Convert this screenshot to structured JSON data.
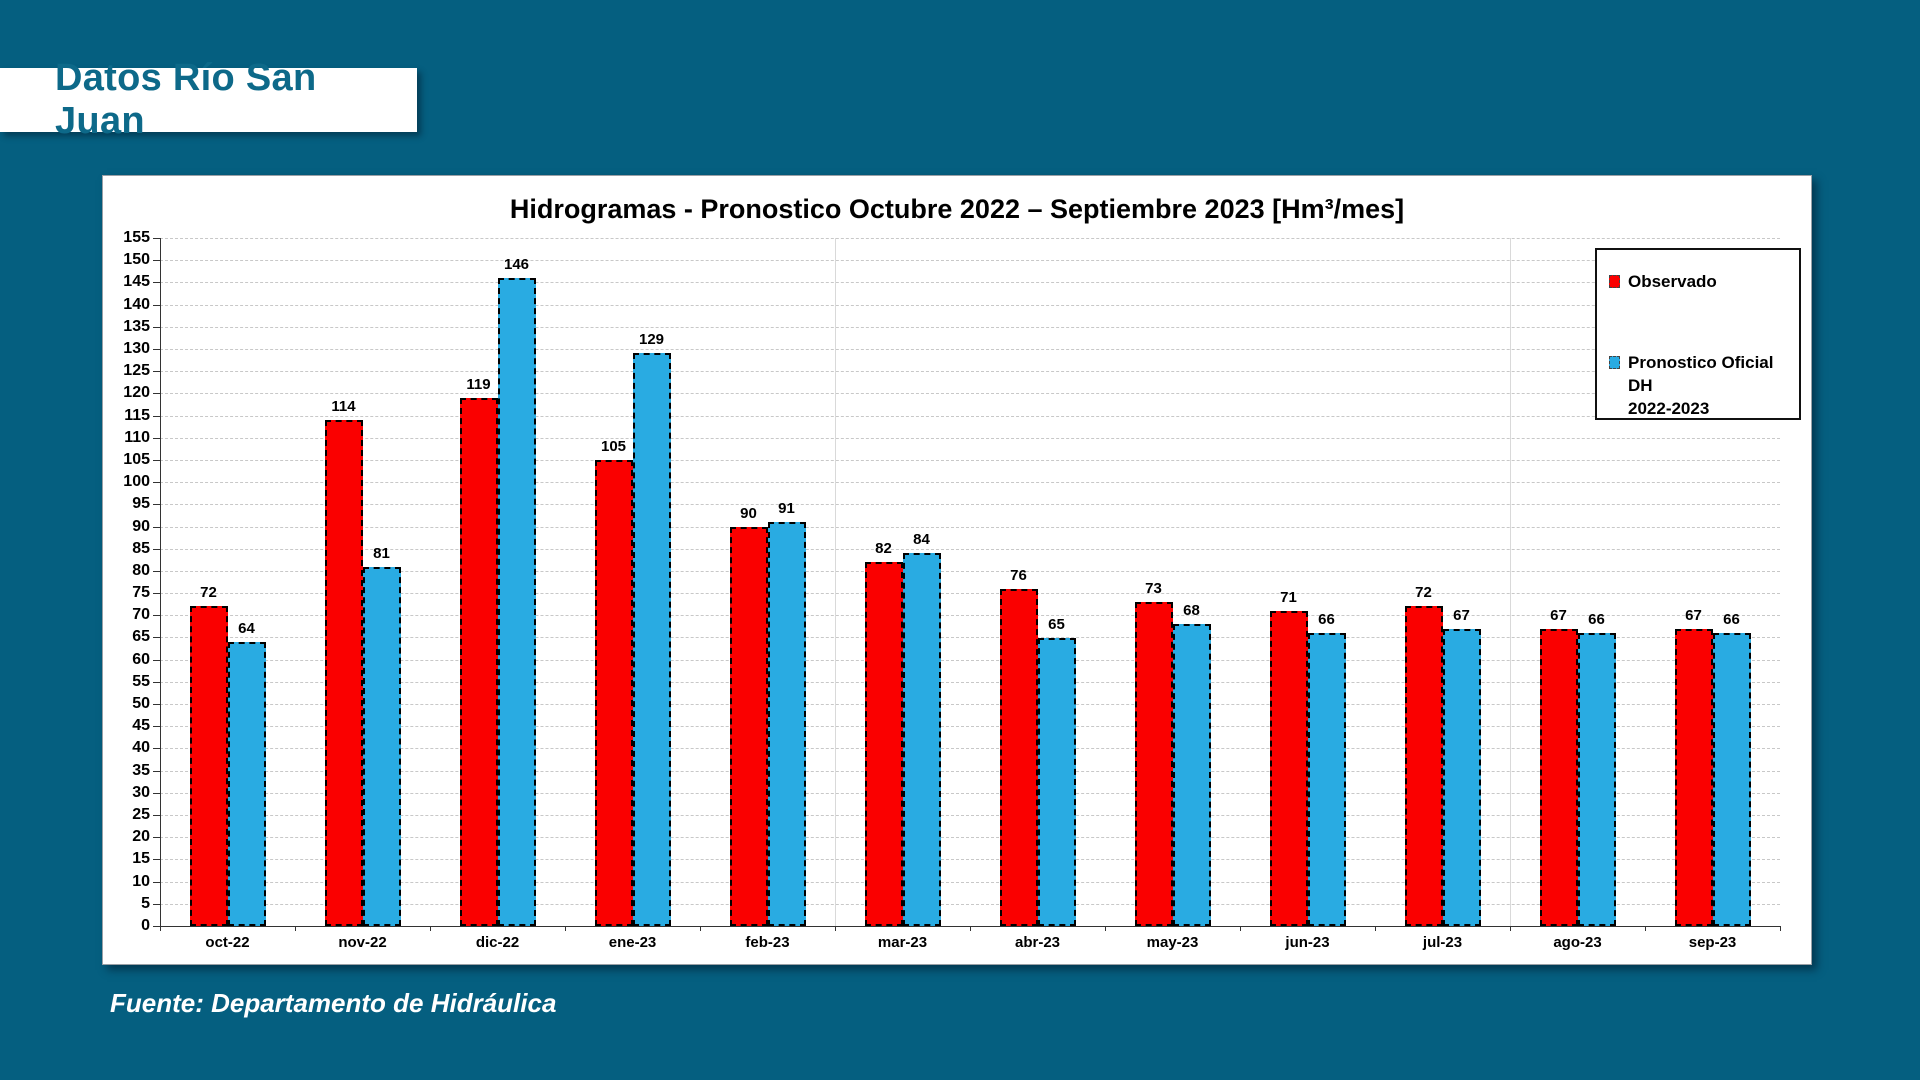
{
  "banner": {
    "title": "Datos Río San Juan"
  },
  "footer": {
    "source": "Fuente: Departamento de Hidráulica"
  },
  "colors": {
    "background": "#055F80",
    "banner_text": "#0D6989",
    "observado": "#FA0000",
    "pronostico": "#29ABE2",
    "gridline": "#C8C8C8",
    "axis": "#333333"
  },
  "legend": {
    "items": [
      {
        "label": "Observado",
        "color": "#FA0000"
      },
      {
        "label": "Pronostico Oficial DH",
        "label_line2": "2022-2023",
        "color": "#29ABE2"
      }
    ]
  },
  "chart_data": {
    "type": "bar",
    "title": "Hidrogramas - Pronostico Octubre 2022 – Septiembre 2023 [Hm³/mes]",
    "categories": [
      "oct-22",
      "nov-22",
      "dic-22",
      "ene-23",
      "feb-23",
      "mar-23",
      "abr-23",
      "may-23",
      "jun-23",
      "jul-23",
      "ago-23",
      "sep-23"
    ],
    "series": [
      {
        "name": "Observado",
        "color": "#FA0000",
        "values": [
          72,
          114,
          119,
          105,
          90,
          82,
          76,
          73,
          71,
          72,
          67,
          67
        ]
      },
      {
        "name": "Pronostico Oficial DH 2022-2023",
        "color": "#29ABE2",
        "values": [
          64,
          81,
          146,
          129,
          91,
          84,
          65,
          68,
          66,
          67,
          66,
          66
        ]
      }
    ],
    "xlabel": "",
    "ylabel": "",
    "ylim": [
      0,
      155
    ],
    "y_tick_step": 5,
    "grid": "horizontal dashed each tick; vertical solid after 5th and 10th category",
    "vertical_grid_after": [
      5,
      10
    ],
    "legend_position": "top-right",
    "data_labels": true
  }
}
